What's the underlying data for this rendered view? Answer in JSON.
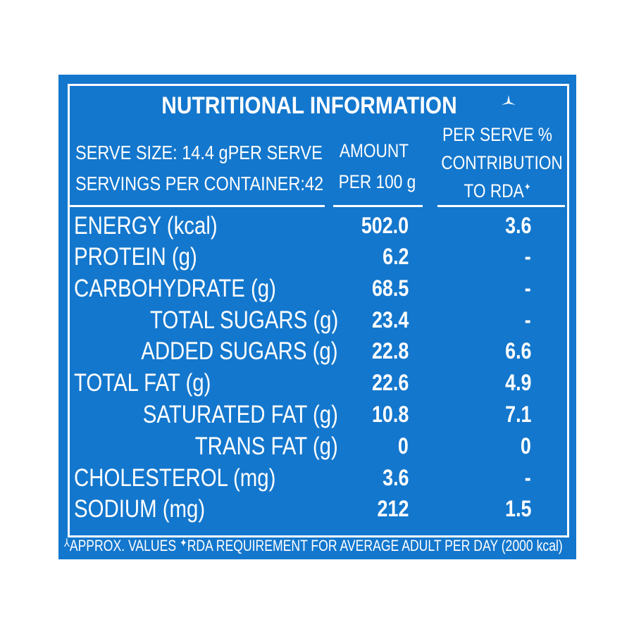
{
  "title": "NUTRITIONAL INFORMATION",
  "title_mark_icon": "approx-symbol-icon",
  "header": {
    "serve_size": "SERVE SIZE: 14.4 gPER SERVE",
    "servings": "SERVINGS PER CONTAINER:42",
    "amount_line1": "AMOUNT",
    "amount_line2": "PER 100 g",
    "rda_line1": "PER SERVE %",
    "rda_line2": "CONTRIBUTION",
    "rda_line3": "TO RDA",
    "rda_mark": "✦"
  },
  "rows": [
    {
      "label": "ENERGY (kcal)",
      "amount": "502.0",
      "rda": "3.6"
    },
    {
      "label": "PROTEIN (g)",
      "amount": "6.2",
      "rda": "-"
    },
    {
      "label": "CARBOHYDRATE (g)",
      "amount": "68.5",
      "rda": "-"
    },
    {
      "label": "TOTAL SUGARS (g)",
      "amount": "23.4",
      "rda": "-"
    },
    {
      "label": "ADDED SUGARS (g)",
      "amount": "22.8",
      "rda": "6.6"
    },
    {
      "label": "TOTAL FAT (g)",
      "amount": "22.6",
      "rda": "4.9"
    },
    {
      "label": "SATURATED FAT (g)",
      "amount": "10.8",
      "rda": "7.1"
    },
    {
      "label": "TRANS FAT (g)",
      "amount": "0",
      "rda": "0"
    },
    {
      "label": "CHOLESTEROL (mg)",
      "amount": "3.6",
      "rda": "-"
    },
    {
      "label": "SODIUM (mg)",
      "amount": "212",
      "rda": "1.5"
    }
  ],
  "footnote": {
    "approx_mark": "⅄",
    "approx": "APPROX. VALUES ",
    "rda_mark": "✦",
    "rda": "RDA REQUIREMENT FOR AVERAGE ADULT PER DAY (2000 kcal)"
  },
  "colors": {
    "background": "#1377cd",
    "text": "#ffffff"
  }
}
